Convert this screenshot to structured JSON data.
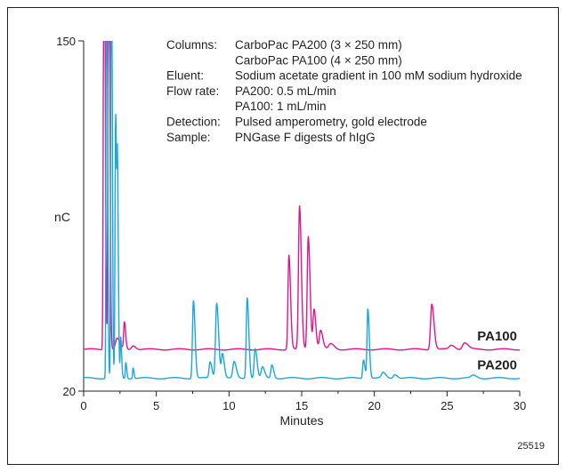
{
  "chart_data": {
    "type": "line",
    "title": "",
    "xlabel": "Minutes",
    "ylabel": "nC",
    "xlim": [
      0,
      30
    ],
    "ylim": [
      20,
      150
    ],
    "x_ticks": [
      0,
      5,
      10,
      15,
      20,
      25,
      30
    ],
    "y_ticks": [
      20,
      150
    ],
    "grid": false,
    "legend": "inline labels at right end of traces",
    "figure_id": "25519",
    "annotation": [
      {
        "key": "Columns:",
        "value": "CarboPac PA200 (3 × 250 mm)"
      },
      {
        "key": "",
        "value": "CarboPac PA100 (4 × 250 mm)"
      },
      {
        "key": "Eluent:",
        "value": "Sodium acetate gradient in 100 mM sodium hydroxide"
      },
      {
        "key": "Flow rate:",
        "value": "PA200: 0.5 mL/min"
      },
      {
        "key": "",
        "value": "PA100: 1 mL/min"
      },
      {
        "key": "Detection:",
        "value": "Pulsed amperometry, gold electrode"
      },
      {
        "key": "Sample:",
        "value": "PNGase F digests of hIgG"
      }
    ],
    "series": [
      {
        "name": "PA100",
        "color": "#e0168b",
        "baseline": 35.5,
        "peaks": [
          {
            "x": 1.4,
            "h": 200,
            "w": 0.06
          },
          {
            "x": 1.72,
            "h": 200,
            "w": 0.06
          },
          {
            "x": 2.3,
            "h": 4,
            "w": 0.15
          },
          {
            "x": 2.8,
            "h": 10,
            "w": 0.07
          },
          {
            "x": 3.4,
            "h": 1.5,
            "w": 0.15
          },
          {
            "x": 14.12,
            "h": 35,
            "w": 0.09
          },
          {
            "x": 14.85,
            "h": 53,
            "w": 0.1
          },
          {
            "x": 15.45,
            "h": 42,
            "w": 0.1
          },
          {
            "x": 15.85,
            "h": 15,
            "w": 0.1
          },
          {
            "x": 16.3,
            "h": 7,
            "w": 0.12
          },
          {
            "x": 17.0,
            "h": 2,
            "w": 0.2
          },
          {
            "x": 23.95,
            "h": 17,
            "w": 0.12
          },
          {
            "x": 25.3,
            "h": 1.5,
            "w": 0.2
          },
          {
            "x": 26.2,
            "h": 2.5,
            "w": 0.2
          }
        ]
      },
      {
        "name": "PA200",
        "color": "#1ba7d9",
        "baseline": 24.8,
        "peaks": [
          {
            "x": 1.58,
            "h": 200,
            "w": 0.05
          },
          {
            "x": 1.9,
            "h": 200,
            "w": 0.05
          },
          {
            "x": 2.2,
            "h": 98,
            "w": 0.06
          },
          {
            "x": 2.33,
            "h": 62,
            "w": 0.05
          },
          {
            "x": 2.55,
            "h": 15,
            "w": 0.05
          },
          {
            "x": 2.9,
            "h": 6,
            "w": 0.05
          },
          {
            "x": 3.4,
            "h": 4,
            "w": 0.05
          },
          {
            "x": 7.55,
            "h": 29,
            "w": 0.09
          },
          {
            "x": 8.7,
            "h": 6,
            "w": 0.1
          },
          {
            "x": 9.15,
            "h": 28,
            "w": 0.11
          },
          {
            "x": 9.55,
            "h": 9,
            "w": 0.1
          },
          {
            "x": 10.35,
            "h": 6,
            "w": 0.12
          },
          {
            "x": 11.25,
            "h": 30,
            "w": 0.09
          },
          {
            "x": 11.8,
            "h": 11,
            "w": 0.1
          },
          {
            "x": 12.3,
            "h": 4,
            "w": 0.12
          },
          {
            "x": 12.95,
            "h": 5,
            "w": 0.1
          },
          {
            "x": 19.25,
            "h": 7,
            "w": 0.08
          },
          {
            "x": 19.55,
            "h": 26,
            "w": 0.08
          },
          {
            "x": 20.6,
            "h": 2,
            "w": 0.15
          },
          {
            "x": 21.4,
            "h": 1.5,
            "w": 0.15
          },
          {
            "x": 26.8,
            "h": 1,
            "w": 0.2
          }
        ]
      }
    ]
  }
}
